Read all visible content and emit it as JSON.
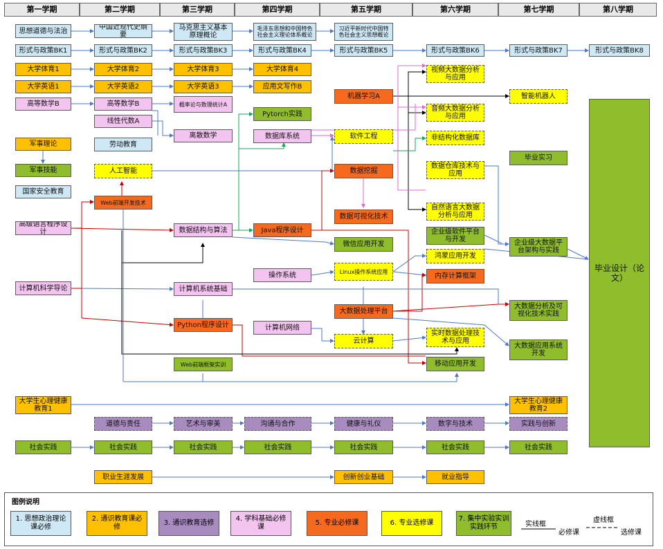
{
  "terms": [
    "第一学期",
    "第二学期",
    "第三学期",
    "第四学期",
    "第五学期",
    "第六学期",
    "第七学期",
    "第八学期"
  ],
  "courses": {
    "sixiang": "思想道德与法治",
    "jindaishi": "中国近现代史纲要",
    "makesi": "马克思主义基本原理概论",
    "maozedong": "毛泽东思想和中国特色社会主义理论体系概论",
    "xinshidai": "习近平新时代中国特色社会主义思想概论",
    "xingshi1": "形式与政策BK1",
    "xingshi2": "形式与政策BK2",
    "xingshi3": "形式与政策BK3",
    "xingshi4": "形式与政策BK4",
    "xingshi5": "形式与政策BK5",
    "xingshi6": "形式与政策BK6",
    "xingshi7": "形式与政策BK7",
    "xingshi8": "形式与政策BK8",
    "tiyu1": "大学体育1",
    "tiyu2": "大学体育2",
    "tiyu3": "大学体育3",
    "tiyu4": "大学体育4",
    "yingyu1": "大学英语1",
    "yingyu2": "大学英语2",
    "yingyu3": "大学英语3",
    "yingyongwen": "应用文写作B",
    "gaoshu1": "高等数学B",
    "gaoshu2": "高等数学B",
    "gailv": "概率论与数理统计A",
    "xiandai": "线性代数A",
    "lisan": "离散数学",
    "laodong": "劳动教育",
    "junshililun": "军事理论",
    "junshijineng": "军事技能",
    "guojiaanquan": "国家安全教育",
    "rengongzhineng": "人工智能",
    "webqianduan": "Web前端开发技术",
    "gaojiyuyan": "高级语言程序设计",
    "jisuanjidaolun": "计算机科学导论",
    "shujujiegou": "数据结构与算法",
    "jisuanjixitong": "计算机系统基础",
    "python": "Python程序设计",
    "webshixun": "Web前端框架实训",
    "pytorch": "Pytorch实践",
    "shujuku": "数据库系统",
    "java": "Java程序设计",
    "caozuoxitong": "操作系统",
    "wangluo": "计算机网络",
    "jiqixuexi": "机器学习A",
    "ruanjiangongcheng": "软件工程",
    "shujuwajue": "数据挖掘",
    "keshihua": "数据可视化技术",
    "weixin": "微信应用开发",
    "linux": "Linux操作系统应用",
    "dashujuchuli": "大数据处理平台",
    "yunjisuan": "云计算",
    "shipin": "视频大数据分析与应用",
    "yinpin": "音频大数据分析与应用",
    "feijiegou": "非结构化数据库",
    "shujucangku": "数据仓库技术与应用",
    "ziranyuyan": "自然语言大数据分析与应用",
    "qiyeruanjian": "企业级软件平台与开发",
    "hongmeng": "鸿蒙应用开发",
    "neicun": "内存计算框架",
    "shishi": "实时数据处理技术与应用",
    "yidong": "移动应用开发",
    "zhinengjiqiren": "智能机器人",
    "biyeshixi": "毕业实习",
    "qiyepingtai": "企业级大数据平台架构与实践",
    "fenxikeshihua": "大数据分析及可视化技术实践",
    "yingyongxitong": "大数据应用系统开发",
    "biyesheji": "毕业设计（论文）",
    "xinli1": "大学生心理健康教育1",
    "xinli2": "大学生心理健康教育2",
    "daode": "道德与责任",
    "yishu": "艺术与审美",
    "goutong": "沟通与合作",
    "jiankang": "健康与礼仪",
    "shuzi": "数字与技术",
    "shijian": "实践与创新",
    "shehui1": "社会实践",
    "shehui2": "社会实践",
    "shehui3": "社会实践",
    "shehui4": "社会实践",
    "shehui5": "社会实践",
    "shehui6": "社会实践",
    "shehui7": "社会实践",
    "zhiye": "职业生涯发展",
    "chuangxin": "创新创业基础",
    "jiuye": "就业指导"
  },
  "legend": {
    "title": "图例说明",
    "items": [
      "1. 思想政治理论课必修",
      "2. 通识教育课必修",
      "3. 通识教育选修",
      "4. 学科基础必修课",
      "5. 专业必修课",
      "6. 专业选修课",
      "7. 集中实验实训实践环节"
    ],
    "solid_label": "实线框",
    "solid_desc": "必修课",
    "dash_label": "虚线框",
    "dash_desc": "选修课"
  },
  "colors": {
    "c1": "#cfe8f5",
    "c2": "#ffc000",
    "c3": "#a88cc0",
    "c4": "#f4c4f0",
    "c5": "#f56a1f",
    "c6": "#ffff00",
    "c7": "#8fbd2c",
    "line_blue": "#4a79c8",
    "line_red": "#c00000",
    "line_green": "#16a35a",
    "line_pink": "#e066d8",
    "line_black": "#000000"
  }
}
